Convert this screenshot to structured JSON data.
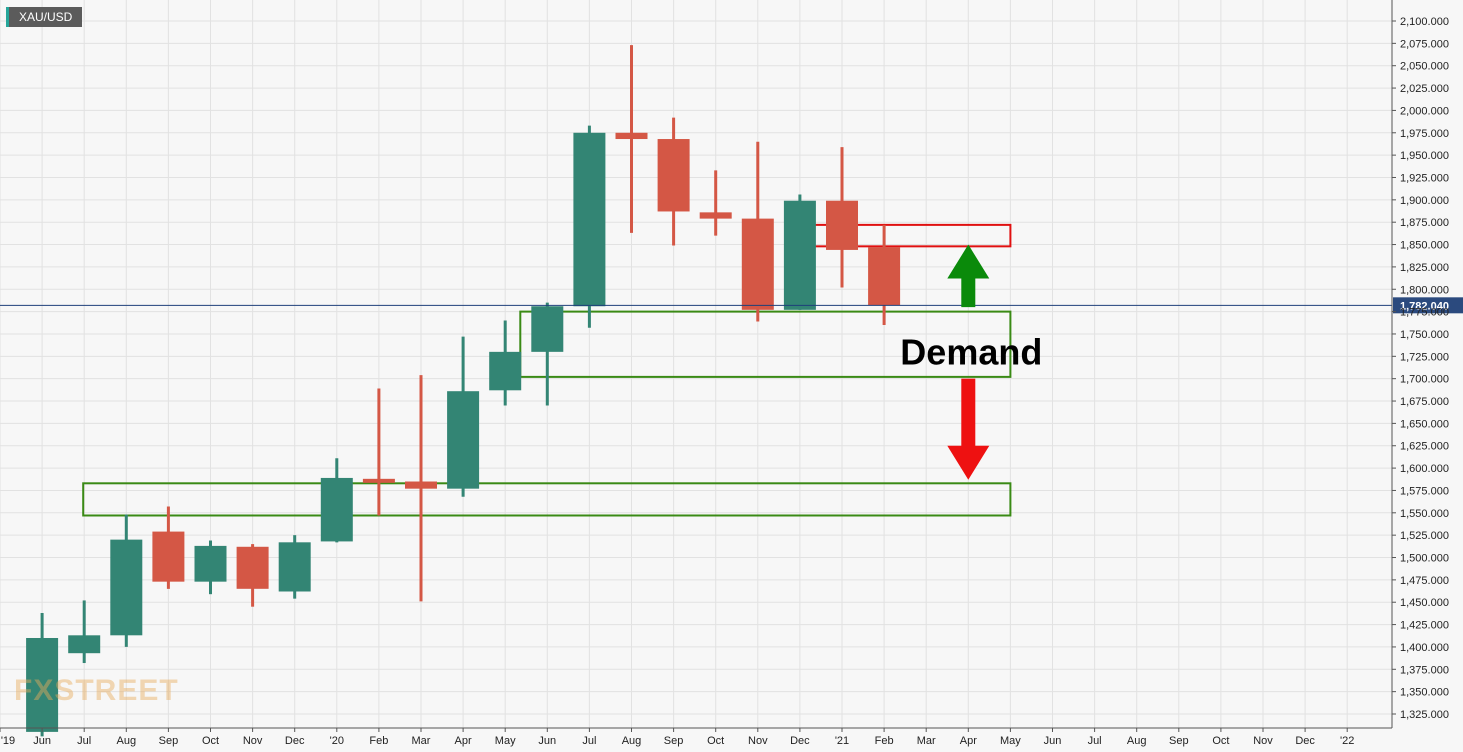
{
  "symbol": "XAU/USD",
  "watermark": "FXSTREET",
  "colors": {
    "up": "#338574",
    "down": "#d45745",
    "grid": "#e2e2e2",
    "demand_box": "#3a8a15",
    "supply_box": "#e01010",
    "arrow_up": "#0a8a0a",
    "arrow_down": "#ee1111",
    "price_line": "#1e3f7a"
  },
  "chart_data": {
    "type": "candlestick",
    "interval": "monthly",
    "y_axis": {
      "min": 1325,
      "max": 2100,
      "step": 25,
      "position": "right",
      "tick_labels": [
        "1,325.000",
        "1,350.000",
        "1,375.000",
        "1,400.000",
        "1,425.000",
        "1,450.000",
        "1,475.000",
        "1,500.000",
        "1,525.000",
        "1,550.000",
        "1,575.000",
        "1,600.000",
        "1,625.000",
        "1,650.000",
        "1,675.000",
        "1,700.000",
        "1,725.000",
        "1,750.000",
        "1,775.000",
        "1,800.000",
        "1,825.000",
        "1,850.000",
        "1,875.000",
        "1,900.000",
        "1,925.000",
        "1,950.000",
        "1,975.000",
        "2,000.000",
        "2,025.000",
        "2,050.000",
        "2,075.000",
        "2,100.000"
      ]
    },
    "x_axis": {
      "tick_labels": [
        "'19",
        "Jun",
        "Jul",
        "Aug",
        "Sep",
        "Oct",
        "Nov",
        "Dec",
        "'20",
        "Feb",
        "Mar",
        "Apr",
        "May",
        "Jun",
        "Jul",
        "Aug",
        "Sep",
        "Oct",
        "Nov",
        "Dec",
        "'21",
        "Feb",
        "Mar",
        "Apr",
        "May",
        "Jun",
        "Jul",
        "Aug",
        "Sep",
        "Oct",
        "Nov",
        "Dec",
        "'22"
      ]
    },
    "grid": true,
    "candles": [
      {
        "label": "Jun",
        "open": 1305,
        "high": 1438,
        "low": 1300,
        "close": 1410
      },
      {
        "label": "Jul",
        "open": 1393,
        "high": 1452,
        "low": 1382,
        "close": 1413
      },
      {
        "label": "Aug",
        "open": 1413,
        "high": 1548,
        "low": 1400,
        "close": 1520
      },
      {
        "label": "Sep",
        "open": 1529,
        "high": 1557,
        "low": 1465,
        "close": 1473
      },
      {
        "label": "Oct",
        "open": 1473,
        "high": 1519,
        "low": 1459,
        "close": 1513
      },
      {
        "label": "Nov",
        "open": 1512,
        "high": 1515,
        "low": 1445,
        "close": 1465
      },
      {
        "label": "Dec",
        "open": 1462,
        "high": 1525,
        "low": 1454,
        "close": 1517
      },
      {
        "label": "'20",
        "open": 1518,
        "high": 1611,
        "low": 1517,
        "close": 1589
      },
      {
        "label": "Feb",
        "open": 1588,
        "high": 1689,
        "low": 1547,
        "close": 1585
      },
      {
        "label": "Mar",
        "open": 1585,
        "high": 1704,
        "low": 1451,
        "close": 1577
      },
      {
        "label": "Apr",
        "open": 1577,
        "high": 1747,
        "low": 1568,
        "close": 1686
      },
      {
        "label": "May",
        "open": 1687,
        "high": 1765,
        "low": 1670,
        "close": 1730
      },
      {
        "label": "Jun",
        "open": 1730,
        "high": 1785,
        "low": 1670,
        "close": 1781
      },
      {
        "label": "Jul",
        "open": 1781,
        "high": 1983,
        "low": 1757,
        "close": 1975
      },
      {
        "label": "Aug",
        "open": 1975,
        "high": 2073,
        "low": 1863,
        "close": 1968
      },
      {
        "label": "Sep",
        "open": 1968,
        "high": 1992,
        "low": 1849,
        "close": 1887
      },
      {
        "label": "Oct",
        "open": 1886,
        "high": 1933,
        "low": 1860,
        "close": 1879
      },
      {
        "label": "Nov",
        "open": 1879,
        "high": 1965,
        "low": 1764,
        "close": 1777
      },
      {
        "label": "Dec",
        "open": 1777,
        "high": 1906,
        "low": 1777,
        "close": 1899
      },
      {
        "label": "'21",
        "open": 1899,
        "high": 1959,
        "low": 1802,
        "close": 1844
      },
      {
        "label": "Feb",
        "open": 1847,
        "high": 1872,
        "low": 1760,
        "close": 1782
      }
    ],
    "current_price": 1782.04,
    "current_price_label": "1,782.040",
    "zones": [
      {
        "name": "demand",
        "label": "Demand",
        "from": 1702,
        "to": 1775,
        "start": "Jun '20",
        "end": "May '21"
      },
      {
        "name": "supply",
        "from": 1848,
        "to": 1872,
        "start": "Jan '21",
        "end": "May '21"
      },
      {
        "name": "support",
        "from": 1547,
        "to": 1583,
        "start": "Jul '19",
        "end": "May '21"
      }
    ],
    "arrows": [
      {
        "direction": "up",
        "from": 1780,
        "to": 1850,
        "at": "Apr '21"
      },
      {
        "direction": "down",
        "from": 1700,
        "to": 1587,
        "at": "Apr '21"
      }
    ]
  }
}
